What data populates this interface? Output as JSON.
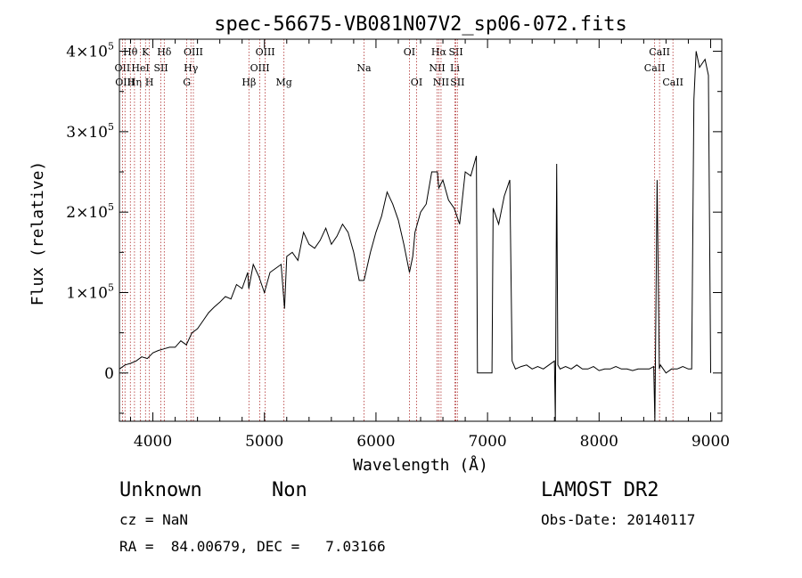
{
  "chart_data": {
    "type": "line",
    "title": "spec-56675-VB081N07V2_sp06-072.fits",
    "xlabel": "Wavelength (Å)",
    "ylabel": "Flux (relative)",
    "xlim": [
      3700,
      9100
    ],
    "ylim": [
      -60000,
      415000
    ],
    "x_ticks": [
      4000,
      5000,
      6000,
      7000,
      8000,
      9000
    ],
    "x_tick_labels": [
      "4000",
      "5000",
      "6000",
      "7000",
      "8000",
      "9000"
    ],
    "y_ticks": [
      0,
      100000,
      200000,
      300000,
      400000
    ],
    "y_tick_labels": [
      {
        "mant": "0",
        "exp": ""
      },
      {
        "mant": "1×10",
        "exp": "5"
      },
      {
        "mant": "2×10",
        "exp": "5"
      },
      {
        "mant": "3×10",
        "exp": "5"
      },
      {
        "mant": "4×10",
        "exp": "5"
      }
    ],
    "grid": false,
    "series": [
      {
        "x": [
          3700,
          3750,
          3800,
          3850,
          3900,
          3950,
          4000,
          4050,
          4100,
          4150,
          4200,
          4250,
          4300,
          4350,
          4400,
          4450,
          4500,
          4550,
          4600,
          4650,
          4700,
          4750,
          4800,
          4850,
          4860,
          4900,
          4950,
          5000,
          5050,
          5100,
          5150,
          5180,
          5200,
          5250,
          5300,
          5350,
          5400,
          5450,
          5500,
          5550,
          5600,
          5650,
          5700,
          5750,
          5800,
          5850,
          5893,
          5950,
          6000,
          6050,
          6100,
          6150,
          6200,
          6250,
          6300,
          6330,
          6350,
          6400,
          6450,
          6500,
          6550,
          6563,
          6600,
          6650,
          6700,
          6750,
          6800,
          6850,
          6900,
          6910,
          6920,
          7000,
          7040,
          7050,
          7100,
          7150,
          7200,
          7220,
          7250,
          7300,
          7350,
          7400,
          7450,
          7500,
          7550,
          7600,
          7608,
          7620,
          7630,
          7650,
          7700,
          7750,
          7800,
          7850,
          7900,
          7950,
          8000,
          8050,
          8100,
          8150,
          8200,
          8250,
          8300,
          8350,
          8400,
          8450,
          8490,
          8500,
          8520,
          8540,
          8550,
          8600,
          8650,
          8700,
          8750,
          8800,
          8830,
          8850,
          8870,
          8900,
          8950,
          8980,
          9000
        ],
        "y": [
          5000,
          10000,
          12000,
          15000,
          20000,
          18000,
          25000,
          28000,
          30000,
          32000,
          32000,
          40000,
          35000,
          50000,
          55000,
          65000,
          75000,
          82000,
          88000,
          95000,
          92000,
          110000,
          105000,
          125000,
          105000,
          135000,
          120000,
          100000,
          125000,
          130000,
          135000,
          80000,
          145000,
          150000,
          140000,
          175000,
          160000,
          155000,
          165000,
          180000,
          160000,
          170000,
          185000,
          175000,
          150000,
          115000,
          115000,
          150000,
          175000,
          195000,
          225000,
          210000,
          190000,
          160000,
          125000,
          145000,
          175000,
          200000,
          210000,
          250000,
          250000,
          230000,
          240000,
          215000,
          205000,
          185000,
          250000,
          245000,
          270000,
          0,
          0,
          0,
          0,
          205000,
          185000,
          220000,
          240000,
          15000,
          5000,
          8000,
          10000,
          5000,
          8000,
          5000,
          10000,
          15000,
          -60000,
          260000,
          10000,
          5000,
          8000,
          5000,
          10000,
          5000,
          5000,
          8000,
          3000,
          5000,
          5000,
          8000,
          5000,
          5000,
          3000,
          5000,
          5000,
          5000,
          8000,
          -60000,
          240000,
          5000,
          10000,
          0,
          5000,
          5000,
          8000,
          5000,
          5000,
          340000,
          400000,
          380000,
          390000,
          370000,
          0
        ]
      }
    ],
    "lines": [
      {
        "x": 3727,
        "name": "OII",
        "row": 1
      },
      {
        "x": 3750,
        "name": "OIII",
        "row": 2
      },
      {
        "x": 3798,
        "name": "Hθ",
        "row": 0
      },
      {
        "x": 3835,
        "name": "Hη",
        "row": 2
      },
      {
        "x": 3889,
        "name": "HeI",
        "row": 1
      },
      {
        "x": 3934,
        "name": "K",
        "row": 0
      },
      {
        "x": 3969,
        "name": "H",
        "row": 2
      },
      {
        "x": 4072,
        "name": "SII",
        "row": 1
      },
      {
        "x": 4102,
        "name": "Hδ",
        "row": 0
      },
      {
        "x": 4304,
        "name": "G",
        "row": 2
      },
      {
        "x": 4341,
        "name": "Hγ",
        "row": 1
      },
      {
        "x": 4363,
        "name": "OIII",
        "row": 0
      },
      {
        "x": 4861,
        "name": "Hβ",
        "row": 2
      },
      {
        "x": 4959,
        "name": "OIII",
        "row": 1
      },
      {
        "x": 5007,
        "name": "OIII",
        "row": 0
      },
      {
        "x": 5175,
        "name": "Mg",
        "row": 2
      },
      {
        "x": 5893,
        "name": "Na",
        "row": 1
      },
      {
        "x": 6300,
        "name": "OI",
        "row": 0
      },
      {
        "x": 6364,
        "name": "OI",
        "row": 2
      },
      {
        "x": 6548,
        "name": "NII",
        "row": 1
      },
      {
        "x": 6563,
        "name": "Hα",
        "row": 0
      },
      {
        "x": 6583,
        "name": "NII",
        "row": 2
      },
      {
        "x": 6707,
        "name": "Li",
        "row": 1
      },
      {
        "x": 6716,
        "name": "SII",
        "row": 0
      },
      {
        "x": 6730,
        "name": "SII",
        "row": 2
      },
      {
        "x": 8498,
        "name": "CaII",
        "row": 1
      },
      {
        "x": 8542,
        "name": "CaII",
        "row": 0
      },
      {
        "x": 8662,
        "name": "CaII",
        "row": 2
      }
    ]
  },
  "info": {
    "object_class": "Unknown",
    "subclass": "Non",
    "survey": "LAMOST DR2",
    "redshift": "cz = NaN",
    "obs_date": "Obs-Date: 20140117",
    "coordinates": "RA =  84.00679, DEC =   7.03166"
  }
}
